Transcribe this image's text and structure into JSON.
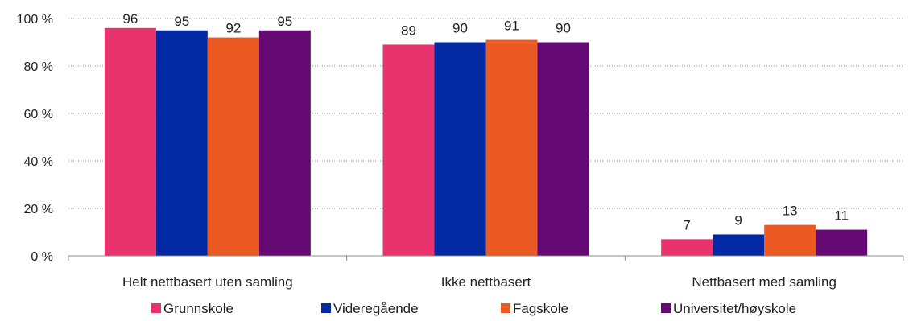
{
  "chart_data": {
    "type": "bar",
    "categories": [
      "Helt nettbasert uten samling",
      "Ikke nettbasert",
      "Nettbasert med samling"
    ],
    "series": [
      {
        "name": "Grunnskole",
        "color": "#E8336D",
        "values": [
          96,
          89,
          7
        ]
      },
      {
        "name": "Videregående",
        "color": "#0029A3",
        "values": [
          95,
          90,
          9
        ]
      },
      {
        "name": "Fagskole",
        "color": "#EA5A22",
        "values": [
          92,
          91,
          13
        ]
      },
      {
        "name": "Universitet/høyskole",
        "color": "#650A75",
        "values": [
          95,
          90,
          11
        ]
      }
    ],
    "ylim": [
      0,
      100
    ],
    "yticks": [
      0,
      20,
      40,
      60,
      80,
      100
    ],
    "ytick_labels": [
      "0 %",
      "20 %",
      "40 %",
      "60 %",
      "80 %",
      "100 %"
    ],
    "data_labels": [
      [
        "96",
        "89",
        "7"
      ],
      [
        "95",
        "90",
        "9"
      ],
      [
        "92",
        "91",
        "13"
      ],
      [
        "95",
        "90",
        "11"
      ]
    ],
    "title": "",
    "xlabel": "",
    "ylabel": "",
    "grid": true,
    "grid_style": "dotted",
    "legend_position": "bottom"
  }
}
